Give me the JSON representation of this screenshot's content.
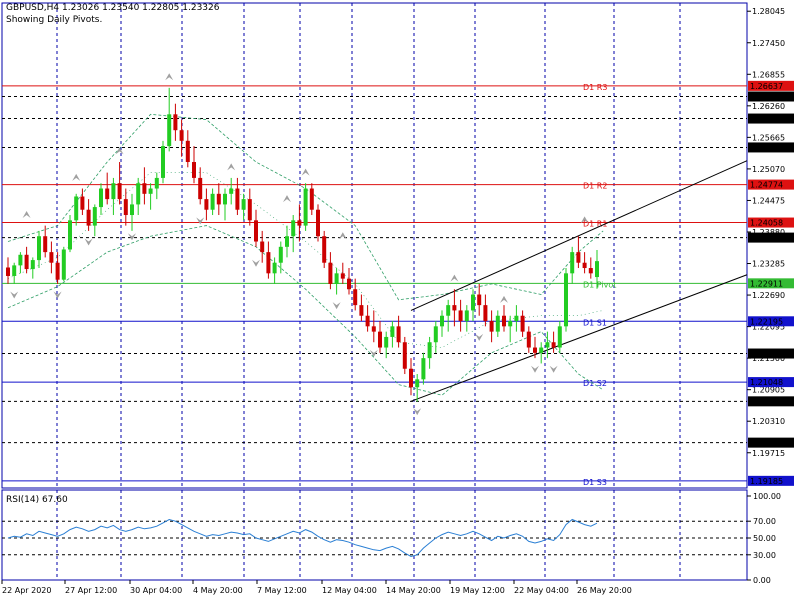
{
  "header": {
    "line1": "GBPUSD,H4  1.23026 1.23540 1.22805 1.23326",
    "line2": "Showing Daily Pivots."
  },
  "rsi_label": "RSI(14) 67.60",
  "colors": {
    "bull": "#22cc22",
    "bear": "#cc0000",
    "grid": "#0000aa",
    "resistance": "#dd1111",
    "pivot": "#33bb33",
    "support": "#1111cc",
    "envelope": "#2e9e66",
    "fractal": "#a0a0a0",
    "channel": "#000000",
    "rsi": "#2a7fd4"
  },
  "chart_data": [
    {
      "type": "candlestick",
      "symbol": "GBPUSD",
      "timeframe": "H4",
      "ylim": [
        1.1905,
        1.282
      ],
      "y_ticks": [
        "1.28045",
        "1.27450",
        "1.26855",
        "1.26260",
        "1.25665",
        "1.25070",
        "1.24475",
        "1.23880",
        "1.23285",
        "1.22690",
        "1.22095",
        "1.21500",
        "1.20905",
        "1.20310",
        "1.19715"
      ],
      "x_labels": [
        "22 Apr 2020",
        "27 Apr 12:00",
        "30 Apr 04:00",
        "4 May 20:00",
        "7 May 12:00",
        "12 May 04:00",
        "14 May 20:00",
        "19 May 12:00",
        "22 May 04:00",
        "26 May 20:00"
      ],
      "price_levels": [
        {
          "value": 1.26637,
          "label": "1.26637",
          "name": "D1 R3",
          "kind": "resistance"
        },
        {
          "value": 1.26436,
          "label": "1.26436",
          "kind": "dotted"
        },
        {
          "value": 1.2602,
          "label": "1.26020",
          "kind": "dotted"
        },
        {
          "value": 1.25475,
          "label": "1.25475",
          "kind": "dotted"
        },
        {
          "value": 1.24774,
          "label": "1.24774",
          "name": "D1 R2",
          "kind": "resistance"
        },
        {
          "value": 1.24058,
          "label": "1.24058",
          "name": "D1 R1",
          "kind": "resistance"
        },
        {
          "value": 1.23774,
          "label": "1.23774",
          "kind": "dotted"
        },
        {
          "value": 1.22911,
          "label": "1.22911",
          "name": "D1 Pivot",
          "kind": "pivot"
        },
        {
          "value": 1.22195,
          "label": "1.22195",
          "name": "D1 S1",
          "kind": "support"
        },
        {
          "value": 1.21587,
          "label": "1.21587",
          "kind": "dotted"
        },
        {
          "value": 1.21048,
          "label": "1.21048",
          "name": "D1 S2",
          "kind": "support"
        },
        {
          "value": 1.20685,
          "label": "1.20685",
          "kind": "dotted"
        },
        {
          "value": 1.19906,
          "label": "1.19906",
          "kind": "dotted"
        },
        {
          "value": 1.19185,
          "label": "1.19185",
          "name": "D1 S3",
          "kind": "support"
        }
      ],
      "channel": [
        {
          "t1": 65,
          "p1": 1.224,
          "t2": 124,
          "p2": 1.25475
        },
        {
          "t1": 65,
          "p1": 1.20685,
          "t2": 124,
          "p2": 1.23285
        }
      ],
      "candles": [
        [
          1.2321,
          1.234,
          1.229,
          1.2305
        ],
        [
          1.2305,
          1.233,
          1.229,
          1.2325
        ],
        [
          1.2325,
          1.235,
          1.231,
          1.2345
        ],
        [
          1.2345,
          1.236,
          1.231,
          1.2318
        ],
        [
          1.2318,
          1.234,
          1.23,
          1.2335
        ],
        [
          1.2335,
          1.239,
          1.232,
          1.238
        ],
        [
          1.238,
          1.24,
          1.234,
          1.235
        ],
        [
          1.235,
          1.237,
          1.231,
          1.233
        ],
        [
          1.233,
          1.235,
          1.229,
          1.2298
        ],
        [
          1.2298,
          1.236,
          1.2295,
          1.2355
        ],
        [
          1.2355,
          1.242,
          1.235,
          1.241
        ],
        [
          1.241,
          1.246,
          1.24,
          1.2455
        ],
        [
          1.2455,
          1.247,
          1.242,
          1.243
        ],
        [
          1.243,
          1.245,
          1.239,
          1.24
        ],
        [
          1.24,
          1.244,
          1.238,
          1.2435
        ],
        [
          1.2435,
          1.248,
          1.242,
          1.247
        ],
        [
          1.247,
          1.25,
          1.244,
          1.245
        ],
        [
          1.245,
          1.249,
          1.242,
          1.248
        ],
        [
          1.248,
          1.252,
          1.244,
          1.245
        ],
        [
          1.245,
          1.247,
          1.24,
          1.242
        ],
        [
          1.242,
          1.246,
          1.239,
          1.244
        ],
        [
          1.244,
          1.249,
          1.242,
          1.248
        ],
        [
          1.248,
          1.251,
          1.244,
          1.246
        ],
        [
          1.246,
          1.248,
          1.243,
          1.247
        ],
        [
          1.247,
          1.25,
          1.245,
          1.249
        ],
        [
          1.249,
          1.256,
          1.248,
          1.255
        ],
        [
          1.255,
          1.266,
          1.254,
          1.261
        ],
        [
          1.261,
          1.263,
          1.256,
          1.258
        ],
        [
          1.258,
          1.26,
          1.253,
          1.256
        ],
        [
          1.256,
          1.258,
          1.251,
          1.252
        ],
        [
          1.252,
          1.255,
          1.248,
          1.249
        ],
        [
          1.249,
          1.251,
          1.244,
          1.245
        ],
        [
          1.245,
          1.247,
          1.241,
          1.243
        ],
        [
          1.243,
          1.247,
          1.242,
          1.246
        ],
        [
          1.246,
          1.248,
          1.242,
          1.244
        ],
        [
          1.244,
          1.247,
          1.241,
          1.246
        ],
        [
          1.246,
          1.249,
          1.244,
          1.247
        ],
        [
          1.247,
          1.249,
          1.242,
          1.243
        ],
        [
          1.243,
          1.246,
          1.241,
          1.245
        ],
        [
          1.245,
          1.247,
          1.24,
          1.241
        ],
        [
          1.241,
          1.243,
          1.236,
          1.237
        ],
        [
          1.237,
          1.239,
          1.233,
          1.235
        ],
        [
          1.235,
          1.237,
          1.23,
          1.231
        ],
        [
          1.231,
          1.234,
          1.229,
          1.233
        ],
        [
          1.233,
          1.237,
          1.231,
          1.236
        ],
        [
          1.236,
          1.24,
          1.234,
          1.238
        ],
        [
          1.238,
          1.242,
          1.235,
          1.241
        ],
        [
          1.241,
          1.244,
          1.237,
          1.24
        ],
        [
          1.24,
          1.248,
          1.239,
          1.247
        ],
        [
          1.247,
          1.248,
          1.242,
          1.243
        ],
        [
          1.243,
          1.244,
          1.237,
          1.238
        ],
        [
          1.238,
          1.239,
          1.232,
          1.233
        ],
        [
          1.233,
          1.235,
          1.228,
          1.229
        ],
        [
          1.229,
          1.232,
          1.227,
          1.231
        ],
        [
          1.231,
          1.233,
          1.229,
          1.23
        ],
        [
          1.23,
          1.232,
          1.227,
          1.228
        ],
        [
          1.228,
          1.23,
          1.224,
          1.225
        ],
        [
          1.225,
          1.227,
          1.222,
          1.223
        ],
        [
          1.223,
          1.225,
          1.22,
          1.221
        ],
        [
          1.221,
          1.224,
          1.218,
          1.22
        ],
        [
          1.22,
          1.222,
          1.216,
          1.217
        ],
        [
          1.217,
          1.22,
          1.215,
          1.219
        ],
        [
          1.219,
          1.222,
          1.217,
          1.221
        ],
        [
          1.221,
          1.223,
          1.217,
          1.218
        ],
        [
          1.218,
          1.219,
          1.212,
          1.213
        ],
        [
          1.213,
          1.215,
          1.208,
          1.2095
        ],
        [
          1.2095,
          1.212,
          1.2068,
          1.211
        ],
        [
          1.211,
          1.216,
          1.21,
          1.215
        ],
        [
          1.215,
          1.219,
          1.213,
          1.218
        ],
        [
          1.218,
          1.222,
          1.216,
          1.221
        ],
        [
          1.221,
          1.224,
          1.219,
          1.223
        ],
        [
          1.223,
          1.226,
          1.22,
          1.225
        ],
        [
          1.225,
          1.228,
          1.221,
          1.224
        ],
        [
          1.224,
          1.226,
          1.22,
          1.222
        ],
        [
          1.222,
          1.225,
          1.22,
          1.224
        ],
        [
          1.224,
          1.228,
          1.222,
          1.227
        ],
        [
          1.227,
          1.229,
          1.223,
          1.225
        ],
        [
          1.225,
          1.227,
          1.221,
          1.222
        ],
        [
          1.222,
          1.224,
          1.218,
          1.22
        ],
        [
          1.22,
          1.224,
          1.219,
          1.223
        ],
        [
          1.223,
          1.225,
          1.22,
          1.221
        ],
        [
          1.221,
          1.223,
          1.218,
          1.222
        ],
        [
          1.222,
          1.225,
          1.22,
          1.223
        ],
        [
          1.223,
          1.224,
          1.219,
          1.22
        ],
        [
          1.22,
          1.221,
          1.216,
          1.217
        ],
        [
          1.217,
          1.219,
          1.215,
          1.216
        ],
        [
          1.216,
          1.218,
          1.214,
          1.217
        ],
        [
          1.217,
          1.22,
          1.215,
          1.218
        ],
        [
          1.218,
          1.22,
          1.216,
          1.217
        ],
        [
          1.217,
          1.222,
          1.216,
          1.221
        ],
        [
          1.221,
          1.232,
          1.22,
          1.231
        ],
        [
          1.231,
          1.236,
          1.229,
          1.235
        ],
        [
          1.235,
          1.238,
          1.232,
          1.233
        ],
        [
          1.233,
          1.235,
          1.231,
          1.232
        ],
        [
          1.232,
          1.234,
          1.23,
          1.231
        ],
        [
          1.2303,
          1.2354,
          1.2281,
          1.2333
        ]
      ],
      "envelope_upper": [
        [
          0,
          1.237
        ],
        [
          8,
          1.24
        ],
        [
          16,
          1.252
        ],
        [
          23,
          1.261
        ],
        [
          32,
          1.26
        ],
        [
          40,
          1.252
        ],
        [
          48,
          1.247
        ],
        [
          56,
          1.24
        ],
        [
          63,
          1.226
        ],
        [
          70,
          1.227
        ],
        [
          78,
          1.229
        ],
        [
          86,
          1.227
        ],
        [
          92,
          1.235
        ],
        [
          96,
          1.239
        ]
      ],
      "envelope_lower": [
        [
          0,
          1.2245
        ],
        [
          8,
          1.2285
        ],
        [
          16,
          1.235
        ],
        [
          23,
          1.238
        ],
        [
          32,
          1.24
        ],
        [
          40,
          1.236
        ],
        [
          48,
          1.228
        ],
        [
          56,
          1.219
        ],
        [
          63,
          1.21
        ],
        [
          70,
          1.208
        ],
        [
          78,
          1.216
        ],
        [
          86,
          1.22
        ],
        [
          92,
          1.212
        ],
        [
          96,
          1.209
        ]
      ],
      "envelope_mid": [
        [
          0,
          1.23
        ],
        [
          8,
          1.234
        ],
        [
          16,
          1.243
        ],
        [
          23,
          1.25
        ],
        [
          32,
          1.25
        ],
        [
          40,
          1.244
        ],
        [
          48,
          1.237
        ],
        [
          56,
          1.229
        ],
        [
          63,
          1.218
        ],
        [
          70,
          1.217
        ],
        [
          78,
          1.222
        ],
        [
          86,
          1.223
        ],
        [
          92,
          1.223
        ],
        [
          96,
          1.224
        ]
      ],
      "fractals_up": [
        [
          3,
          1.242
        ],
        [
          11,
          1.249
        ],
        [
          18,
          1.254
        ],
        [
          26,
          1.268
        ],
        [
          36,
          1.251
        ],
        [
          45,
          1.245
        ],
        [
          48,
          1.25
        ],
        [
          54,
          1.238
        ],
        [
          72,
          1.23
        ],
        [
          80,
          1.226
        ],
        [
          93,
          1.241
        ]
      ],
      "fractals_down": [
        [
          1,
          1.227
        ],
        [
          8,
          1.227
        ],
        [
          13,
          1.237
        ],
        [
          20,
          1.238
        ],
        [
          31,
          1.241
        ],
        [
          40,
          1.233
        ],
        [
          53,
          1.225
        ],
        [
          59,
          1.216
        ],
        [
          66,
          1.205
        ],
        [
          76,
          1.219
        ],
        [
          85,
          1.213
        ],
        [
          88,
          1.213
        ]
      ]
    },
    {
      "type": "line",
      "name": "RSI(14)",
      "ylim": [
        0,
        100
      ],
      "y_ticks": [
        "100.00",
        "70.00",
        "50.00",
        "30.00",
        "0.00"
      ],
      "levels": [
        70,
        50,
        30
      ],
      "values": [
        50,
        52,
        51,
        55,
        53,
        58,
        56,
        54,
        52,
        55,
        60,
        63,
        61,
        58,
        60,
        64,
        62,
        65,
        60,
        58,
        60,
        63,
        61,
        62,
        64,
        68,
        72,
        70,
        66,
        62,
        58,
        55,
        52,
        54,
        53,
        55,
        57,
        56,
        54,
        55,
        50,
        48,
        46,
        49,
        52,
        55,
        58,
        56,
        60,
        57,
        52,
        48,
        45,
        48,
        47,
        45,
        42,
        40,
        38,
        36,
        35,
        38,
        40,
        37,
        32,
        28,
        30,
        38,
        44,
        50,
        54,
        57,
        55,
        53,
        55,
        58,
        55,
        51,
        47,
        52,
        50,
        53,
        55,
        52,
        46,
        44,
        46,
        49,
        47,
        54,
        66,
        72,
        69,
        66,
        64,
        67.6
      ]
    }
  ]
}
